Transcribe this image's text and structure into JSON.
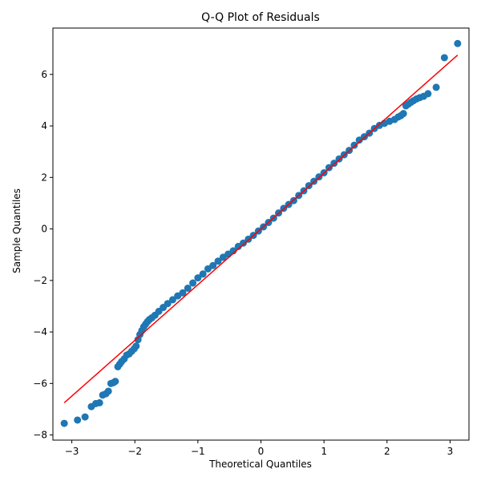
{
  "chart_data": {
    "type": "scatter",
    "title": "Q-Q Plot of Residuals",
    "xlabel": "Theoretical Quantiles",
    "ylabel": "Sample Quantiles",
    "xlim": [
      -3.3,
      3.3
    ],
    "ylim": [
      -8.2,
      7.8
    ],
    "x_ticks": [
      -3,
      -2,
      -1,
      0,
      1,
      2,
      3
    ],
    "y_ticks": [
      -8,
      -6,
      -4,
      -2,
      0,
      2,
      4,
      6
    ],
    "grid": false,
    "legend": "none",
    "marker_color": "#1f77b4",
    "line_color": "#ff0000",
    "series": [
      {
        "kind": "points",
        "x": [
          -3.12,
          -2.91,
          -2.79,
          -2.69,
          -2.62,
          -2.56,
          -2.51,
          -2.46,
          -2.42,
          -2.38,
          -2.34,
          -2.31,
          -2.27,
          -2.24,
          -2.21,
          -2.17,
          -2.13,
          -2.09,
          -2.05,
          -2.01,
          -1.98,
          -1.95,
          -1.92,
          -1.89,
          -1.86,
          -1.83,
          -1.8,
          -1.77,
          -1.73,
          -1.68,
          -1.62,
          -1.55,
          -1.48,
          -1.4,
          -1.32,
          -1.24,
          -1.16,
          -1.08,
          -1.0,
          -0.92,
          -0.84,
          -0.76,
          -0.68,
          -0.6,
          -0.52,
          -0.44,
          -0.36,
          -0.28,
          -0.2,
          -0.12,
          -0.04,
          0.04,
          0.12,
          0.2,
          0.28,
          0.36,
          0.44,
          0.52,
          0.6,
          0.68,
          0.76,
          0.84,
          0.92,
          1.0,
          1.08,
          1.16,
          1.24,
          1.32,
          1.4,
          1.48,
          1.56,
          1.64,
          1.72,
          1.8,
          1.88,
          1.96,
          2.04,
          2.12,
          2.18,
          2.22,
          2.26,
          2.3,
          2.34,
          2.38,
          2.42,
          2.47,
          2.52,
          2.58,
          2.65,
          2.78,
          2.91,
          3.12
        ],
        "y": [
          -7.55,
          -7.42,
          -7.3,
          -6.9,
          -6.78,
          -6.75,
          -6.45,
          -6.4,
          -6.3,
          -6.0,
          -5.97,
          -5.92,
          -5.35,
          -5.25,
          -5.15,
          -5.05,
          -4.9,
          -4.85,
          -4.75,
          -4.65,
          -4.55,
          -4.3,
          -4.1,
          -3.95,
          -3.8,
          -3.7,
          -3.6,
          -3.52,
          -3.45,
          -3.35,
          -3.2,
          -3.05,
          -2.9,
          -2.75,
          -2.6,
          -2.48,
          -2.3,
          -2.1,
          -1.9,
          -1.75,
          -1.55,
          -1.42,
          -1.25,
          -1.1,
          -0.98,
          -0.85,
          -0.68,
          -0.55,
          -0.4,
          -0.25,
          -0.08,
          0.08,
          0.25,
          0.42,
          0.62,
          0.8,
          0.95,
          1.1,
          1.3,
          1.48,
          1.68,
          1.85,
          2.02,
          2.18,
          2.38,
          2.55,
          2.72,
          2.88,
          3.05,
          3.25,
          3.45,
          3.58,
          3.72,
          3.9,
          4.02,
          4.1,
          4.18,
          4.25,
          4.35,
          4.4,
          4.48,
          4.78,
          4.85,
          4.92,
          4.98,
          5.05,
          5.1,
          5.15,
          5.25,
          5.5,
          6.65,
          7.2
        ]
      },
      {
        "kind": "reference-line",
        "x": [
          -3.12,
          3.12
        ],
        "y": [
          -6.75,
          6.75
        ]
      }
    ]
  }
}
